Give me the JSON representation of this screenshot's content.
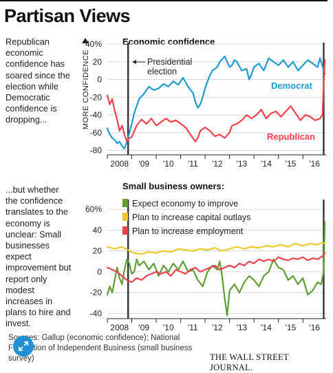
{
  "title": "Partisan Views",
  "notes": {
    "top": "Republican economic confidence has soared since the election while Democratic confidence is dropping...",
    "bottom": "...but whether the confidence translates to the economy is unclear: Small businesses expect improvement but report only modest increases in plans to hire and invest."
  },
  "source": "Sources: Gallup (economic confidence); National Federation of Independent Business (small business survey)",
  "publisher": "THE WALL STREET JOURNAL.",
  "colors": {
    "democrat": "#1f9bd1",
    "republican": "#f0424b",
    "improve": "#5e9e35",
    "capital": "#eecb2c",
    "employment": "#f0424b",
    "axis": "#222222",
    "grid": "#cfcfcf"
  },
  "chart_data": [
    {
      "type": "line",
      "title": "Economic confidence",
      "ylabel": "MORE CONFIDENCE",
      "ylim": [
        -85,
        40
      ],
      "yticks": [
        40,
        20,
        0,
        -20,
        -40,
        -60,
        -80
      ],
      "ytick_labels": [
        "40%",
        "20",
        "0",
        "-20",
        "-40",
        "-60",
        "-80"
      ],
      "xlim": [
        2008.0,
        2016.95
      ],
      "xticks": [
        2008,
        2009,
        2010,
        2011,
        2012,
        2013,
        2014,
        2015,
        2016
      ],
      "xtick_labels": [
        "2008",
        "'09",
        "'10",
        "'11",
        "'12",
        "'13",
        "'14",
        "'15",
        "'16"
      ],
      "vlines": [
        2008.85,
        2016.85
      ],
      "annotation": "Presidential election",
      "grid": true,
      "series": [
        {
          "name": "Democrat",
          "color": "democrat",
          "x": [
            2008.0,
            2008.1,
            2008.2,
            2008.3,
            2008.4,
            2008.5,
            2008.6,
            2008.7,
            2008.8,
            2008.9,
            2009.0,
            2009.1,
            2009.2,
            2009.3,
            2009.5,
            2009.7,
            2009.9,
            2010.1,
            2010.3,
            2010.5,
            2010.7,
            2010.9,
            2011.1,
            2011.3,
            2011.5,
            2011.6,
            2011.7,
            2011.8,
            2011.9,
            2012.0,
            2012.1,
            2012.2,
            2012.3,
            2012.5,
            2012.6,
            2012.8,
            2012.9,
            2013.0,
            2013.1,
            2013.2,
            2013.3,
            2013.5,
            2013.7,
            2013.8,
            2013.9,
            2014.0,
            2014.2,
            2014.4,
            2014.6,
            2014.8,
            2015.0,
            2015.2,
            2015.4,
            2015.6,
            2015.8,
            2016.0,
            2016.2,
            2016.4,
            2016.6,
            2016.7,
            2016.8,
            2016.9
          ],
          "y": [
            -55,
            -62,
            -66,
            -68,
            -72,
            -70,
            -75,
            -78,
            -70,
            -60,
            -50,
            -38,
            -30,
            -22,
            -16,
            -8,
            -12,
            -10,
            -5,
            -8,
            -2,
            -6,
            2,
            -8,
            -15,
            -25,
            -32,
            -28,
            -20,
            -10,
            -2,
            5,
            10,
            14,
            20,
            26,
            20,
            14,
            16,
            22,
            20,
            10,
            12,
            0,
            6,
            14,
            18,
            10,
            24,
            20,
            16,
            22,
            14,
            20,
            10,
            16,
            22,
            18,
            14,
            24,
            15,
            6
          ]
        },
        {
          "name": "Republican",
          "color": "republican",
          "x": [
            2008.0,
            2008.1,
            2008.2,
            2008.3,
            2008.4,
            2008.5,
            2008.6,
            2008.7,
            2008.8,
            2008.9,
            2009.0,
            2009.2,
            2009.4,
            2009.6,
            2009.8,
            2010.0,
            2010.2,
            2010.4,
            2010.6,
            2010.8,
            2011.0,
            2011.2,
            2011.4,
            2011.6,
            2011.7,
            2011.8,
            2012.0,
            2012.2,
            2012.4,
            2012.6,
            2012.8,
            2013.0,
            2013.1,
            2013.3,
            2013.5,
            2013.7,
            2013.9,
            2014.1,
            2014.3,
            2014.5,
            2014.7,
            2014.9,
            2015.1,
            2015.3,
            2015.5,
            2015.7,
            2015.9,
            2016.1,
            2016.3,
            2016.5,
            2016.7,
            2016.8,
            2016.85,
            2016.9
          ],
          "y": [
            -18,
            -28,
            -22,
            -35,
            -45,
            -58,
            -52,
            -62,
            -70,
            -66,
            -65,
            -52,
            -45,
            -50,
            -44,
            -52,
            -48,
            -44,
            -48,
            -46,
            -50,
            -54,
            -62,
            -70,
            -66,
            -58,
            -54,
            -58,
            -64,
            -62,
            -66,
            -60,
            -52,
            -50,
            -46,
            -40,
            -44,
            -40,
            -34,
            -44,
            -38,
            -36,
            -42,
            -36,
            -30,
            -38,
            -46,
            -40,
            -42,
            -46,
            -44,
            -40,
            -5,
            22
          ]
        }
      ]
    },
    {
      "type": "line",
      "title": "Small business owners:",
      "ylim": [
        -45,
        68
      ],
      "yticks": [
        60,
        40,
        20,
        0,
        -20,
        -40
      ],
      "ytick_labels": [
        "60%",
        "40",
        "20",
        "0",
        "-20",
        "-40"
      ],
      "xlim": [
        2008.0,
        2016.95
      ],
      "xticks": [
        2008,
        2009,
        2010,
        2011,
        2012,
        2013,
        2014,
        2015,
        2016
      ],
      "xtick_labels": [
        "2008",
        "'09",
        "'10",
        "'11",
        "'12",
        "'13",
        "'14",
        "'15",
        "'16"
      ],
      "vlines": [
        2008.85,
        2016.85
      ],
      "grid": true,
      "series": [
        {
          "name": "Expect economy to improve",
          "color": "improve",
          "x": [
            2008.0,
            2008.1,
            2008.2,
            2008.3,
            2008.4,
            2008.5,
            2008.6,
            2008.7,
            2008.8,
            2008.9,
            2009.0,
            2009.1,
            2009.2,
            2009.3,
            2009.5,
            2009.7,
            2009.9,
            2010.1,
            2010.3,
            2010.5,
            2010.7,
            2010.9,
            2011.1,
            2011.3,
            2011.5,
            2011.7,
            2011.9,
            2012.1,
            2012.3,
            2012.5,
            2012.6,
            2012.7,
            2012.8,
            2012.9,
            2013.0,
            2013.2,
            2013.4,
            2013.6,
            2013.8,
            2014.0,
            2014.2,
            2014.4,
            2014.6,
            2014.8,
            2015.0,
            2015.2,
            2015.4,
            2015.6,
            2015.8,
            2016.0,
            2016.2,
            2016.4,
            2016.6,
            2016.75,
            2016.85,
            2016.9
          ],
          "y": [
            -22,
            -14,
            -20,
            -8,
            4,
            -6,
            -12,
            2,
            12,
            8,
            -2,
            0,
            12,
            6,
            10,
            2,
            8,
            -4,
            6,
            0,
            8,
            2,
            10,
            0,
            2,
            -8,
            -14,
            0,
            6,
            2,
            10,
            -5,
            -25,
            -42,
            -18,
            -12,
            -20,
            -10,
            -4,
            -8,
            -14,
            -4,
            0,
            12,
            4,
            2,
            -8,
            -4,
            -12,
            -6,
            -22,
            -18,
            -10,
            -12,
            0,
            48
          ]
        },
        {
          "name": "Plan to increase capital outlays",
          "color": "capital",
          "x": [
            2008.0,
            2008.3,
            2008.6,
            2008.9,
            2009.1,
            2009.4,
            2009.7,
            2010.0,
            2010.3,
            2010.6,
            2010.9,
            2011.2,
            2011.5,
            2011.8,
            2012.1,
            2012.4,
            2012.7,
            2013.0,
            2013.3,
            2013.6,
            2013.9,
            2014.2,
            2014.5,
            2014.8,
            2015.1,
            2015.4,
            2015.7,
            2016.0,
            2016.3,
            2016.6,
            2016.8,
            2016.9
          ],
          "y": [
            24,
            22,
            24,
            20,
            18,
            17,
            19,
            18,
            20,
            19,
            22,
            21,
            20,
            22,
            21,
            23,
            20,
            22,
            24,
            22,
            24,
            23,
            25,
            24,
            26,
            24,
            27,
            25,
            27,
            26,
            28,
            27
          ]
        },
        {
          "name": "Plan to increase employment",
          "color": "employment",
          "x": [
            2008.0,
            2008.2,
            2008.4,
            2008.6,
            2008.8,
            2009.0,
            2009.2,
            2009.4,
            2009.6,
            2009.8,
            2010.0,
            2010.2,
            2010.4,
            2010.6,
            2010.8,
            2011.0,
            2011.2,
            2011.4,
            2011.6,
            2011.8,
            2012.0,
            2012.2,
            2012.4,
            2012.6,
            2012.8,
            2013.0,
            2013.2,
            2013.4,
            2013.6,
            2013.8,
            2014.0,
            2014.2,
            2014.4,
            2014.6,
            2014.8,
            2015.0,
            2015.2,
            2015.4,
            2015.6,
            2015.8,
            2016.0,
            2016.2,
            2016.4,
            2016.6,
            2016.8,
            2016.9
          ],
          "y": [
            4,
            2,
            0,
            -4,
            -8,
            -10,
            -6,
            -8,
            -4,
            -2,
            0,
            -2,
            0,
            -4,
            2,
            0,
            -2,
            2,
            4,
            0,
            2,
            4,
            6,
            2,
            4,
            6,
            4,
            8,
            6,
            10,
            8,
            12,
            10,
            12,
            10,
            14,
            12,
            11,
            13,
            12,
            14,
            11,
            13,
            12,
            15,
            18
          ]
        }
      ]
    }
  ]
}
